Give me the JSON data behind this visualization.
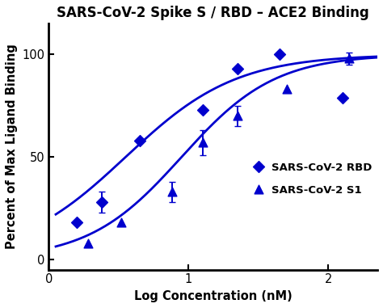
{
  "title": "SARS-CoV-2 Spike S / RBD – ACE2 Binding",
  "xlabel": "Log Concentration (nM)",
  "ylabel": "Percent of Max Ligand Binding",
  "xlim": [
    0.1,
    2.35
  ],
  "ylim": [
    -5,
    115
  ],
  "background_color": "#ffffff",
  "line_color": "#0000cd",
  "rbd_points_x": [
    0.2,
    0.38,
    0.65,
    1.1,
    1.35,
    1.65,
    2.1
  ],
  "rbd_points_y": [
    18,
    28,
    58,
    73,
    93,
    100,
    79
  ],
  "rbd_yerr": [
    0,
    5,
    0,
    0,
    0,
    0,
    0
  ],
  "s1_points_x": [
    0.28,
    0.52,
    0.88,
    1.1,
    1.35,
    1.7,
    2.15
  ],
  "s1_points_y": [
    8,
    18,
    33,
    57,
    70,
    83,
    98
  ],
  "s1_yerr": [
    0,
    0,
    5,
    6,
    5,
    0,
    3
  ],
  "rbd_ec50_log": 0.55,
  "rbd_hill": 1.1,
  "s1_ec50_log": 0.95,
  "s1_hill": 1.3,
  "legend_labels": [
    "SARS-CoV-2 RBD",
    "SARS-CoV-2 S1"
  ],
  "xticks": [
    0,
    1,
    2
  ],
  "yticks": [
    0,
    50,
    100
  ],
  "title_fontsize": 12,
  "axis_label_fontsize": 10.5,
  "tick_fontsize": 10.5
}
